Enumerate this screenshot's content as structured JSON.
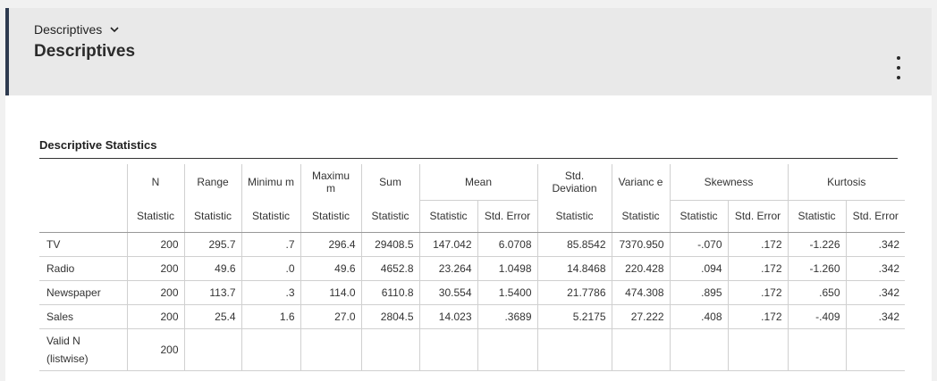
{
  "header": {
    "breadcrumb": "Descriptives",
    "title": "Descriptives"
  },
  "table": {
    "title": "Descriptive Statistics",
    "columns": {
      "n": "N",
      "range": "Range",
      "minimum": "Minimu m",
      "maximum": "Maximu m",
      "sum": "Sum",
      "mean": "Mean",
      "std_deviation": "Std. Deviation",
      "variance": "Varianc e",
      "skewness": "Skewness",
      "kurtosis": "Kurtosis"
    },
    "subheaders": {
      "statistic": "Statistic",
      "std_error": "Std. Error"
    },
    "rows": [
      {
        "label": "TV",
        "values": [
          "200",
          "295.7",
          ".7",
          "296.4",
          "29408.5",
          "147.042",
          "6.0708",
          "85.8542",
          "7370.950",
          "-.070",
          ".172",
          "-1.226",
          ".342"
        ]
      },
      {
        "label": "Radio",
        "values": [
          "200",
          "49.6",
          ".0",
          "49.6",
          "4652.8",
          "23.264",
          "1.0498",
          "14.8468",
          "220.428",
          ".094",
          ".172",
          "-1.260",
          ".342"
        ]
      },
      {
        "label": "Newspaper",
        "values": [
          "200",
          "113.7",
          ".3",
          "114.0",
          "6110.8",
          "30.554",
          "1.5400",
          "21.7786",
          "474.308",
          ".895",
          ".172",
          ".650",
          ".342"
        ]
      },
      {
        "label": "Sales",
        "values": [
          "200",
          "25.4",
          "1.6",
          "27.0",
          "2804.5",
          "14.023",
          ".3689",
          "5.2175",
          "27.222",
          ".408",
          ".172",
          "-.409",
          ".342"
        ]
      },
      {
        "label": "Valid N (listwise)",
        "values": [
          "200",
          "",
          "",
          "",
          "",
          "",
          "",
          "",
          "",
          "",
          "",
          "",
          ""
        ]
      }
    ]
  },
  "icons": {
    "breadcrumb_toggle": "chevron-down-icon",
    "menu": "more-vertical-icon"
  }
}
